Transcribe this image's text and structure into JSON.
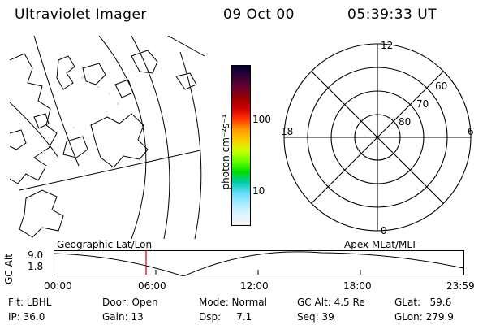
{
  "header": {
    "instrument": "Ultraviolet Imager",
    "date": "09 Oct 00",
    "time": "05:39:33 UT"
  },
  "colorbar": {
    "unit_label": "photon cm⁻²s⁻¹",
    "ticks": [
      "100",
      "10"
    ],
    "colors": [
      "#000033",
      "#330033",
      "#660033",
      "#990000",
      "#cc0000",
      "#ff3300",
      "#ff9900",
      "#ffcc00",
      "#ccff00",
      "#66ff00",
      "#00dd00",
      "#00ccaa",
      "#66ddff",
      "#aaeeff",
      "#ddf5ff",
      "#f4f4f4"
    ]
  },
  "polar": {
    "mlt_labels": {
      "top": "12",
      "left": "18",
      "right": "6",
      "bottom": "0"
    },
    "lat_labels": [
      "60",
      "70",
      "80"
    ]
  },
  "panels": {
    "left_label": "Geographic Lat/Lon",
    "right_label": "Apex MLat/MLT"
  },
  "altitude_plot": {
    "axis_label": "GC Alt",
    "y_top": "9.0",
    "y_bottom": "1.8",
    "x_ticks": [
      "00:00",
      "06:00",
      "12:00",
      "18:00",
      "23:59"
    ]
  },
  "info": {
    "flt": "Flt: LBHL",
    "ip": "IP: 36.0",
    "door": "Door: Open",
    "gain": "Gain: 13",
    "mode": "Mode: Normal",
    "dsp": "Dsp:     7.1",
    "gc_alt": "GC Alt: 4.5 Re",
    "seq": "Seq: 39",
    "glat": "GLat:   59.6",
    "glon": "GLon: 279.9"
  }
}
